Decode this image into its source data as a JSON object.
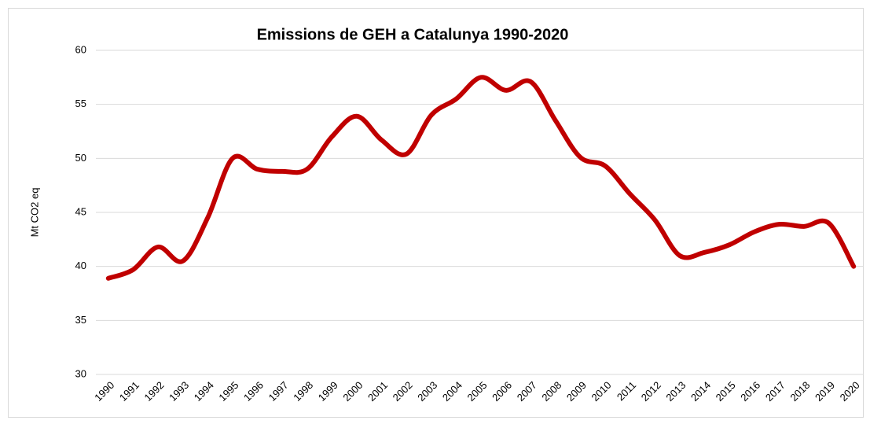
{
  "chart_data": {
    "type": "line",
    "title": "Emissions de GEH a Catalunya 1990-2020",
    "y_label": "Mt CO2 eq",
    "categories": [
      "1990",
      "1991",
      "1992",
      "1993",
      "1994",
      "1995",
      "1996",
      "1997",
      "1998",
      "1999",
      "2000",
      "2001",
      "2002",
      "2003",
      "2004",
      "2005",
      "2006",
      "2007",
      "2008",
      "2009",
      "2010",
      "2011",
      "2012",
      "2013",
      "2014",
      "2015",
      "2016",
      "2017",
      "2018",
      "2019",
      "2020"
    ],
    "series": [
      {
        "name": "Emissions",
        "color": "#c00000",
        "values": [
          38.9,
          39.7,
          41.8,
          40.5,
          44.5,
          50.0,
          49.0,
          48.8,
          49.0,
          52.0,
          53.9,
          51.7,
          50.4,
          54.0,
          55.5,
          57.5,
          56.3,
          57.1,
          53.5,
          50.1,
          49.3,
          46.7,
          44.3,
          41.0,
          41.3,
          42.0,
          43.2,
          43.9,
          43.7,
          44.0,
          40.0
        ]
      }
    ],
    "ylim": [
      30,
      60
    ],
    "yticks": [
      30,
      35,
      40,
      45,
      50,
      55,
      60
    ],
    "grid": true,
    "smooth": true
  }
}
